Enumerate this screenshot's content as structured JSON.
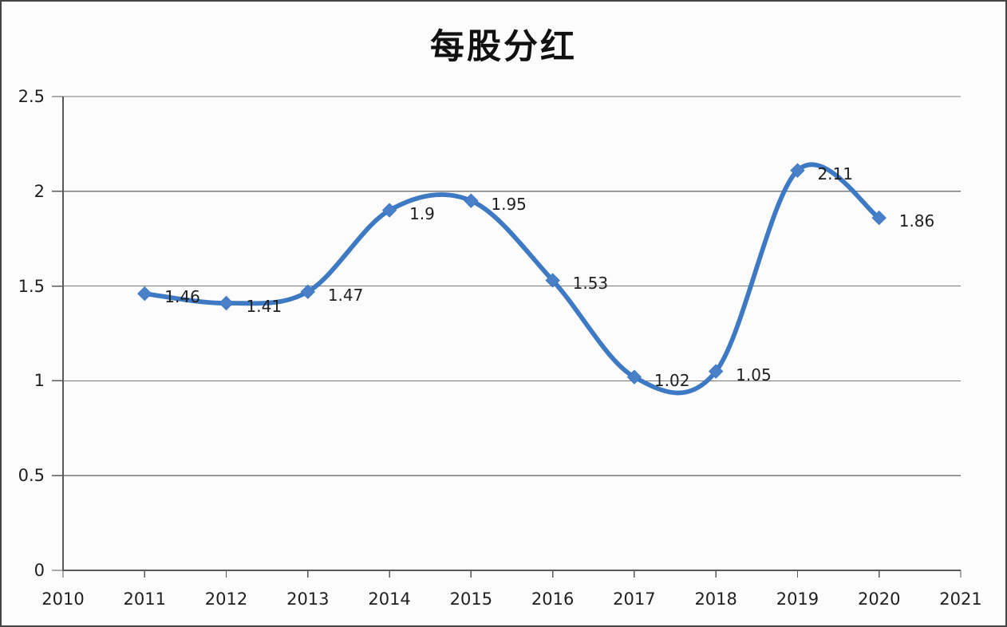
{
  "page": {
    "background": "#fcfcfc",
    "border_color": "#454545"
  },
  "chart_data": {
    "type": "line",
    "title": "每股分红",
    "smooth": true,
    "marker": "diamond",
    "grid": true,
    "legend": "none",
    "x": [
      2011,
      2012,
      2013,
      2014,
      2015,
      2016,
      2017,
      2018,
      2019,
      2020
    ],
    "values": [
      1.46,
      1.41,
      1.47,
      1.9,
      1.95,
      1.53,
      1.02,
      1.05,
      2.11,
      1.86
    ],
    "point_labels": [
      "1.46",
      "1.41",
      "1.47",
      "1.9",
      "1.95",
      "1.53",
      "1.02",
      "1.05",
      "2.11",
      "1.86"
    ],
    "x_axis": {
      "min": 2010,
      "max": 2021,
      "ticks": [
        2010,
        2011,
        2012,
        2013,
        2014,
        2015,
        2016,
        2017,
        2018,
        2019,
        2020,
        2021
      ],
      "tick_labels": [
        "2010",
        "2011",
        "2012",
        "2013",
        "2014",
        "2015",
        "2016",
        "2017",
        "2018",
        "2019",
        "2020",
        "2021"
      ]
    },
    "y_axis": {
      "min": 0,
      "max": 2.5,
      "step": 0.5,
      "ticks": [
        0,
        0.5,
        1,
        1.5,
        2,
        2.5
      ],
      "tick_labels": [
        "0",
        "0.5",
        "1",
        "1.5",
        "2",
        "2.5"
      ]
    },
    "colors": {
      "line": "#3E7AC4",
      "marker": "#4A80C8",
      "grid": "#7a7a7a",
      "axis": "#595959",
      "text": "#1f1f1f",
      "title": "#111111"
    }
  }
}
